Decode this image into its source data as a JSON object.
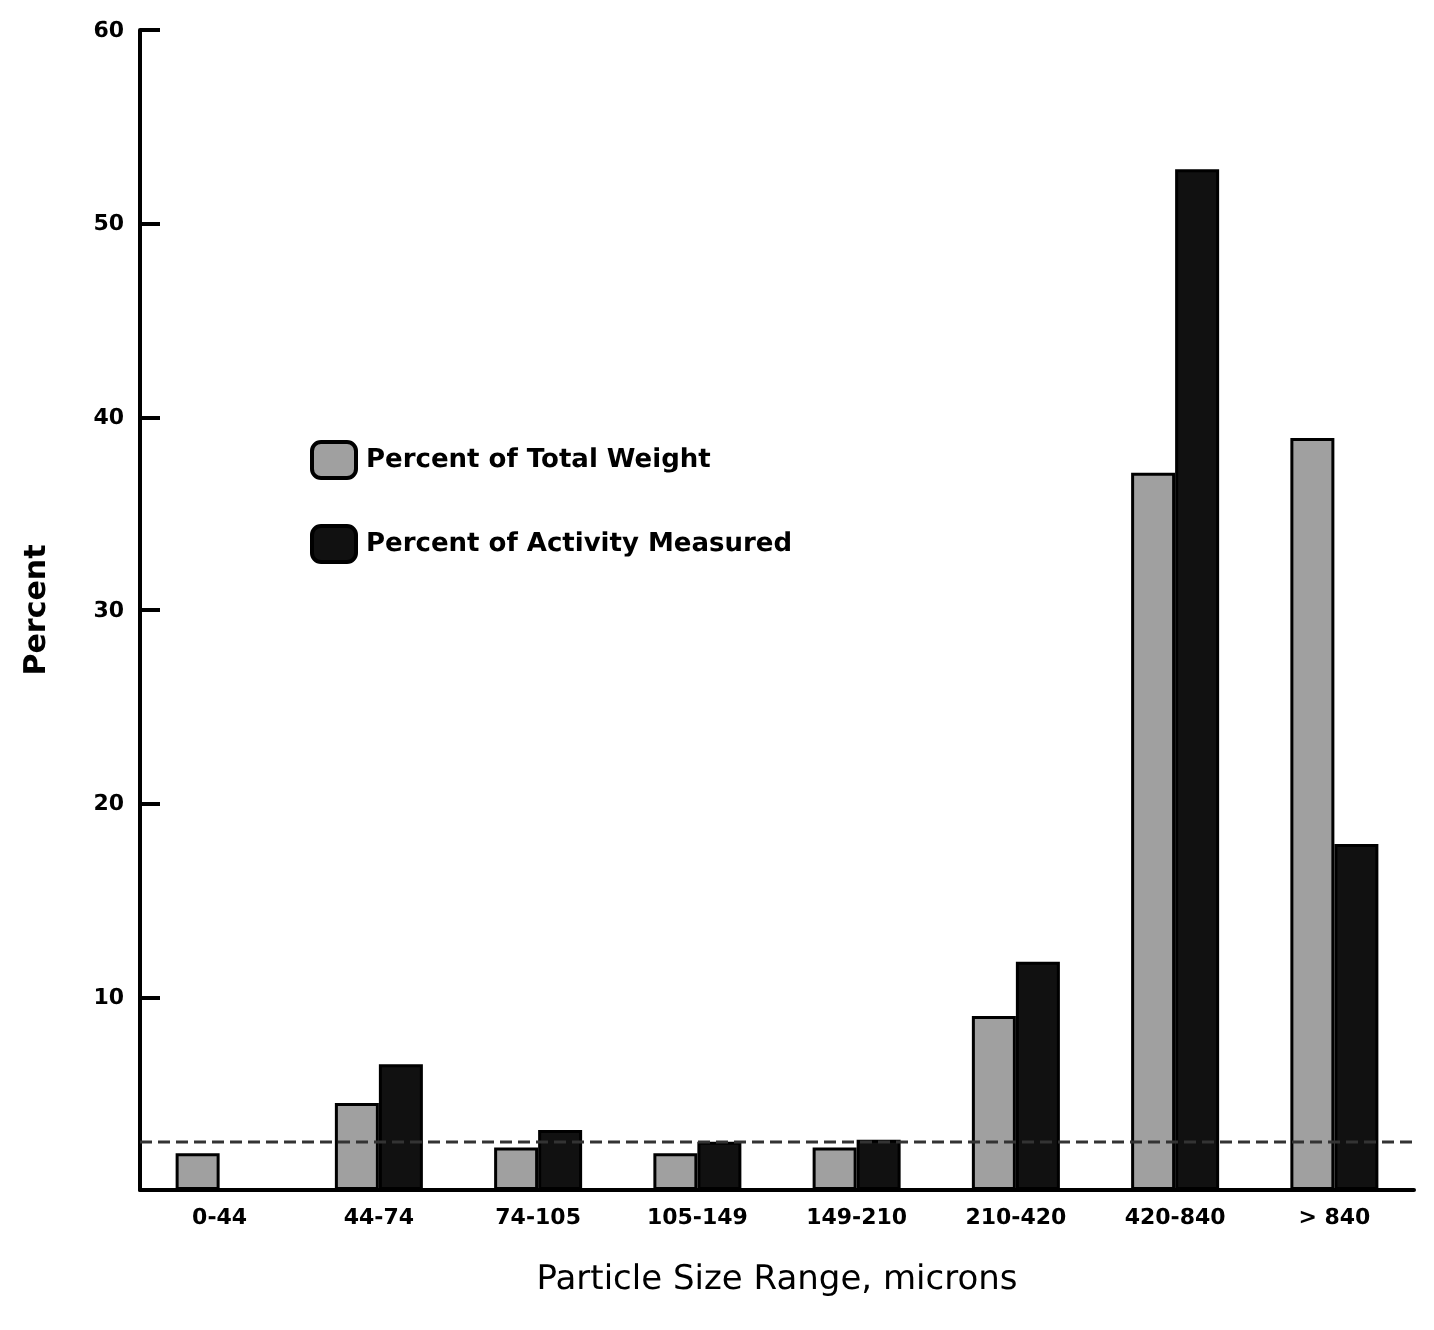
{
  "chart_data": {
    "type": "bar",
    "xlabel": "Particle Size Range, microns",
    "ylabel": "Percent",
    "categories": [
      "0-44",
      "44-74",
      "74-105",
      "105-149",
      "149-210",
      "210-420",
      "420-840",
      "> 840"
    ],
    "series": [
      {
        "name": "Percent of Total Weight",
        "color": "#a0a0a0",
        "values": [
          1.9,
          4.5,
          2.2,
          1.9,
          2.2,
          9,
          37.1,
          38.9
        ]
      },
      {
        "name": "Percent of Activity Measured",
        "color": "#111111",
        "values": [
          null,
          6.5,
          3.1,
          2.5,
          2.6,
          11.8,
          52.8,
          17.9
        ]
      }
    ],
    "ylim": [
      0,
      60
    ],
    "yticks": [
      10,
      20,
      30,
      40,
      50,
      60
    ],
    "ref_lines": [
      {
        "axis": "y",
        "value": 2.5,
        "line_style": "dashed",
        "color": "#333333"
      }
    ],
    "grid": false,
    "legend": "top left"
  }
}
